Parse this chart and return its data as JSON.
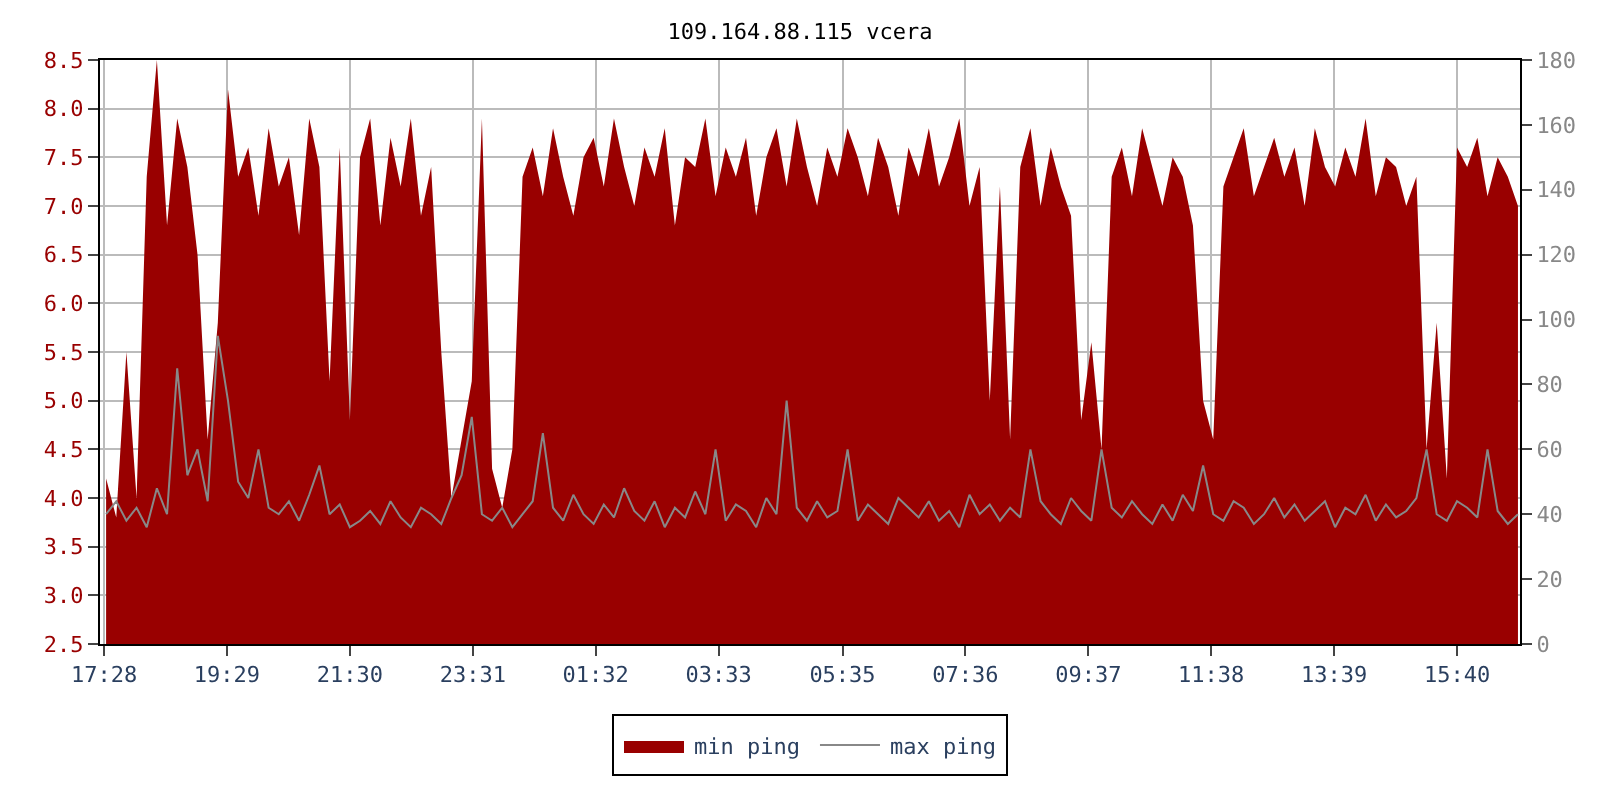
{
  "chart_data": {
    "type": "area",
    "title": "109.164.88.115 vcera",
    "x": [
      "--01-01T17:30",
      "--01-01T17:40",
      "--01-01T17:50",
      "--01-01T18:00",
      "--01-01T18:10",
      "--01-01T18:20",
      "--01-01T18:30",
      "--01-01T18:40",
      "--01-01T18:50",
      "--01-01T19:00",
      "--01-01T19:10",
      "--01-01T19:20",
      "--01-01T19:30",
      "--01-01T19:40",
      "--01-01T19:50",
      "--01-01T20:00",
      "--01-01T20:10",
      "--01-01T20:20",
      "--01-01T20:30",
      "--01-01T20:40",
      "--01-01T20:50",
      "--01-01T21:00",
      "--01-01T21:10",
      "--01-01T21:20",
      "--01-01T21:30",
      "--01-01T21:40",
      "--01-01T21:50",
      "--01-01T22:00",
      "--01-01T22:10",
      "--01-01T22:20",
      "--01-01T22:30",
      "--01-01T22:40",
      "--01-01T22:50",
      "--01-01T23:00",
      "--01-01T23:10",
      "--01-01T23:20",
      "--01-01T23:30",
      "--01-01T23:40",
      "--01-01T23:50",
      "--01-02T00:00",
      "--01-02T00:10",
      "--01-02T00:20",
      "--01-02T00:30",
      "--01-02T00:40",
      "--01-02T00:50",
      "--01-02T01:00",
      "--01-02T01:10",
      "--01-02T01:20",
      "--01-02T01:30",
      "--01-02T01:40",
      "--01-02T01:50",
      "--01-02T02:00",
      "--01-02T02:10",
      "--01-02T02:20",
      "--01-02T02:30",
      "--01-02T02:40",
      "--01-02T02:50",
      "--01-02T03:00",
      "--01-02T03:10",
      "--01-02T03:20",
      "--01-02T03:30",
      "--01-02T03:40",
      "--01-02T03:50",
      "--01-02T04:00",
      "--01-02T04:10",
      "--01-02T04:20",
      "--01-02T04:30",
      "--01-02T04:40",
      "--01-02T04:50",
      "--01-02T05:00",
      "--01-02T05:10",
      "--01-02T05:20",
      "--01-02T05:30",
      "--01-02T05:40",
      "--01-02T05:50",
      "--01-02T06:00",
      "--01-02T06:10",
      "--01-02T06:20",
      "--01-02T06:30",
      "--01-02T06:40",
      "--01-02T06:50",
      "--01-02T07:00",
      "--01-02T07:10",
      "--01-02T07:20",
      "--01-02T07:30",
      "--01-02T07:40",
      "--01-02T07:50",
      "--01-02T08:00",
      "--01-02T08:10",
      "--01-02T08:20",
      "--01-02T08:30",
      "--01-02T08:40",
      "--01-02T08:50",
      "--01-02T09:00",
      "--01-02T09:10",
      "--01-02T09:20",
      "--01-02T09:30",
      "--01-02T09:40",
      "--01-02T09:50",
      "--01-02T10:00",
      "--01-02T10:10",
      "--01-02T10:20",
      "--01-02T10:30",
      "--01-02T10:40",
      "--01-02T10:50",
      "--01-02T11:00",
      "--01-02T11:10",
      "--01-02T11:20",
      "--01-02T11:30",
      "--01-02T11:40",
      "--01-02T11:50",
      "--01-02T12:00",
      "--01-02T12:10",
      "--01-02T12:20",
      "--01-02T12:30",
      "--01-02T12:40",
      "--01-02T12:50",
      "--01-02T13:00",
      "--01-02T13:10",
      "--01-02T13:20",
      "--01-02T13:30",
      "--01-02T13:40",
      "--01-02T13:50",
      "--01-02T14:00",
      "--01-02T14:10",
      "--01-02T14:20",
      "--01-02T14:30",
      "--01-02T14:40",
      "--01-02T14:50",
      "--01-02T15:00",
      "--01-02T15:10",
      "--01-02T15:20",
      "--01-02T15:30",
      "--01-02T15:40",
      "--01-02T15:50",
      "--01-02T16:00",
      "--01-02T16:10",
      "--01-02T16:20",
      "--01-02T16:30",
      "--01-02T16:40"
    ],
    "series": [
      {
        "name": "min ping",
        "color": "#990000",
        "axis": "y",
        "values": [
          4.2,
          3.8,
          5.5,
          4.0,
          7.3,
          8.5,
          6.8,
          7.9,
          7.4,
          6.5,
          4.6,
          5.8,
          8.2,
          7.3,
          7.6,
          6.9,
          7.8,
          7.2,
          7.5,
          6.7,
          7.9,
          7.4,
          5.2,
          7.6,
          4.8,
          7.5,
          7.9,
          6.8,
          7.7,
          7.2,
          7.9,
          6.9,
          7.4,
          5.5,
          4.0,
          4.6,
          5.2,
          7.9,
          4.3,
          3.9,
          4.5,
          7.3,
          7.6,
          7.1,
          7.8,
          7.3,
          6.9,
          7.5,
          7.7,
          7.2,
          7.9,
          7.4,
          7.0,
          7.6,
          7.3,
          7.8,
          6.8,
          7.5,
          7.4,
          7.9,
          7.1,
          7.6,
          7.3,
          7.7,
          6.9,
          7.5,
          7.8,
          7.2,
          7.9,
          7.4,
          7.0,
          7.6,
          7.3,
          7.8,
          7.5,
          7.1,
          7.7,
          7.4,
          6.9,
          7.6,
          7.3,
          7.8,
          7.2,
          7.5,
          7.9,
          7.0,
          7.4,
          5.0,
          7.2,
          4.6,
          7.4,
          7.8,
          7.0,
          7.6,
          7.2,
          6.9,
          4.8,
          5.6,
          4.5,
          7.3,
          7.6,
          7.1,
          7.8,
          7.4,
          7.0,
          7.5,
          7.3,
          6.8,
          5.0,
          4.6,
          7.2,
          7.5,
          7.8,
          7.1,
          7.4,
          7.7,
          7.3,
          7.6,
          7.0,
          7.8,
          7.4,
          7.2,
          7.6,
          7.3,
          7.9,
          7.1,
          7.5,
          7.4,
          7.0,
          7.3,
          4.5,
          5.8,
          4.2,
          7.6,
          7.4,
          7.7,
          7.1,
          7.5,
          7.3,
          7.0
        ]
      },
      {
        "name": "max ping",
        "type": "line",
        "color": "#888888",
        "axis": "y2",
        "values": [
          40,
          44,
          38,
          42,
          36,
          48,
          40,
          85,
          52,
          60,
          44,
          95,
          75,
          50,
          45,
          60,
          42,
          40,
          44,
          38,
          46,
          55,
          40,
          43,
          36,
          38,
          41,
          37,
          44,
          39,
          36,
          42,
          40,
          37,
          45,
          52,
          70,
          40,
          38,
          42,
          36,
          40,
          44,
          65,
          42,
          38,
          46,
          40,
          37,
          43,
          39,
          48,
          41,
          38,
          44,
          36,
          42,
          39,
          47,
          40,
          60,
          38,
          43,
          41,
          36,
          45,
          40,
          75,
          42,
          38,
          44,
          39,
          41,
          60,
          38,
          43,
          40,
          37,
          45,
          42,
          39,
          44,
          38,
          41,
          36,
          46,
          40,
          43,
          38,
          42,
          39,
          60,
          44,
          40,
          37,
          45,
          41,
          38,
          60,
          42,
          39,
          44,
          40,
          37,
          43,
          38,
          46,
          41,
          55,
          40,
          38,
          44,
          42,
          37,
          40,
          45,
          39,
          43,
          38,
          41,
          44,
          36,
          42,
          40,
          46,
          38,
          43,
          39,
          41,
          45,
          60,
          40,
          38,
          44,
          42,
          39,
          60,
          41,
          37,
          40
        ]
      }
    ],
    "xlim": [
      "--01-01T17:24",
      "--01-02T16:42"
    ],
    "xticks": [
      {
        "value": "--01-01T17:28",
        "label": "17:28"
      },
      {
        "value": "--01-01T19:29",
        "label": "19:29"
      },
      {
        "value": "--01-01T21:30",
        "label": "21:30"
      },
      {
        "value": "--01-01T23:31",
        "label": "23:31"
      },
      {
        "value": "--01-02T01:32",
        "label": "01:32"
      },
      {
        "value": "--01-02T03:33",
        "label": "03:33"
      },
      {
        "value": "--01-02T05:35",
        "label": "05:35"
      },
      {
        "value": "--01-02T07:36",
        "label": "07:36"
      },
      {
        "value": "--01-02T09:37",
        "label": "09:37"
      },
      {
        "value": "--01-02T11:38",
        "label": "11:38"
      },
      {
        "value": "--01-02T13:39",
        "label": "13:39"
      },
      {
        "value": "--01-02T15:40",
        "label": "15:40"
      }
    ],
    "ylim": [
      2.5,
      8.5
    ],
    "yticks": [
      {
        "value": 2.5,
        "label": "2.5"
      },
      {
        "value": 3,
        "label": "3.0"
      },
      {
        "value": 3.5,
        "label": "3.5"
      },
      {
        "value": 4,
        "label": "4.0"
      },
      {
        "value": 4.5,
        "label": "4.5"
      },
      {
        "value": 5,
        "label": "5.0"
      },
      {
        "value": 5.5,
        "label": "5.5"
      },
      {
        "value": 6,
        "label": "6.0"
      },
      {
        "value": 6.5,
        "label": "6.5"
      },
      {
        "value": 7,
        "label": "7.0"
      },
      {
        "value": 7.5,
        "label": "7.5"
      },
      {
        "value": 8,
        "label": "8.0"
      },
      {
        "value": 8.5,
        "label": "8.5"
      }
    ],
    "y2lim": [
      0,
      180
    ],
    "y2ticks": [
      0,
      20,
      40,
      60,
      80,
      100,
      120,
      140,
      160,
      180
    ],
    "grid": true,
    "legend": "bottom"
  }
}
